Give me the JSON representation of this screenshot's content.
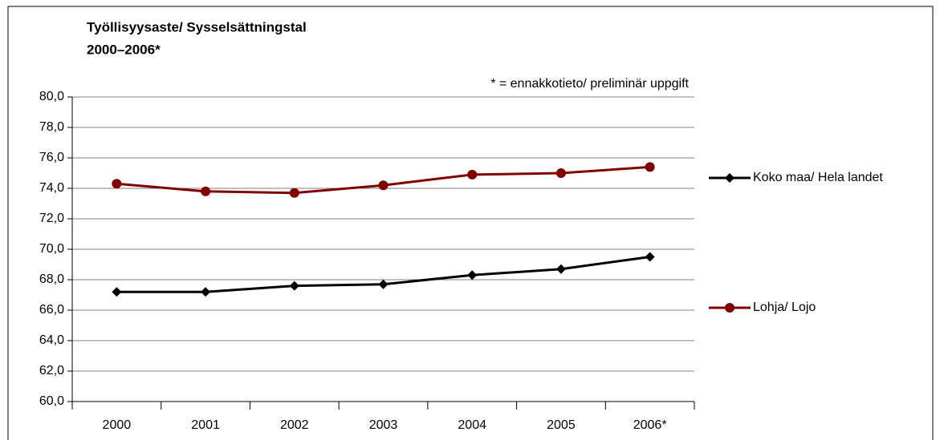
{
  "chart_data": {
    "type": "line",
    "title": [
      "Työllisyysaste/ Sysselsättningstal",
      "2000–2006*"
    ],
    "annotation": "* = ennakkotieto/ preliminär uppgift",
    "categories": [
      "2000",
      "2001",
      "2002",
      "2003",
      "2004",
      "2005",
      "2006*"
    ],
    "series": [
      {
        "name": "Koko maa/ Hela landet",
        "color": "#000000",
        "marker": "diamond",
        "values": [
          67.2,
          67.2,
          67.6,
          67.7,
          68.3,
          68.7,
          69.5
        ]
      },
      {
        "name": "Lohja/ Lojo",
        "color": "#800000",
        "marker": "circle",
        "values": [
          74.3,
          73.8,
          73.7,
          74.2,
          74.9,
          75.0,
          75.4
        ]
      }
    ],
    "ylim": [
      60,
      80
    ],
    "yticks": [
      {
        "value": 60,
        "label": "60,0"
      },
      {
        "value": 62,
        "label": "62,0"
      },
      {
        "value": 64,
        "label": "64,0"
      },
      {
        "value": 66,
        "label": "66,0"
      },
      {
        "value": 68,
        "label": "68,0"
      },
      {
        "value": 70,
        "label": "70,0"
      },
      {
        "value": 72,
        "label": "72,0"
      },
      {
        "value": 74,
        "label": "74,0"
      },
      {
        "value": 76,
        "label": "76,0"
      },
      {
        "value": 78,
        "label": "78,0"
      },
      {
        "value": 80,
        "label": "80,0"
      }
    ],
    "grid": true,
    "legend": "right"
  }
}
